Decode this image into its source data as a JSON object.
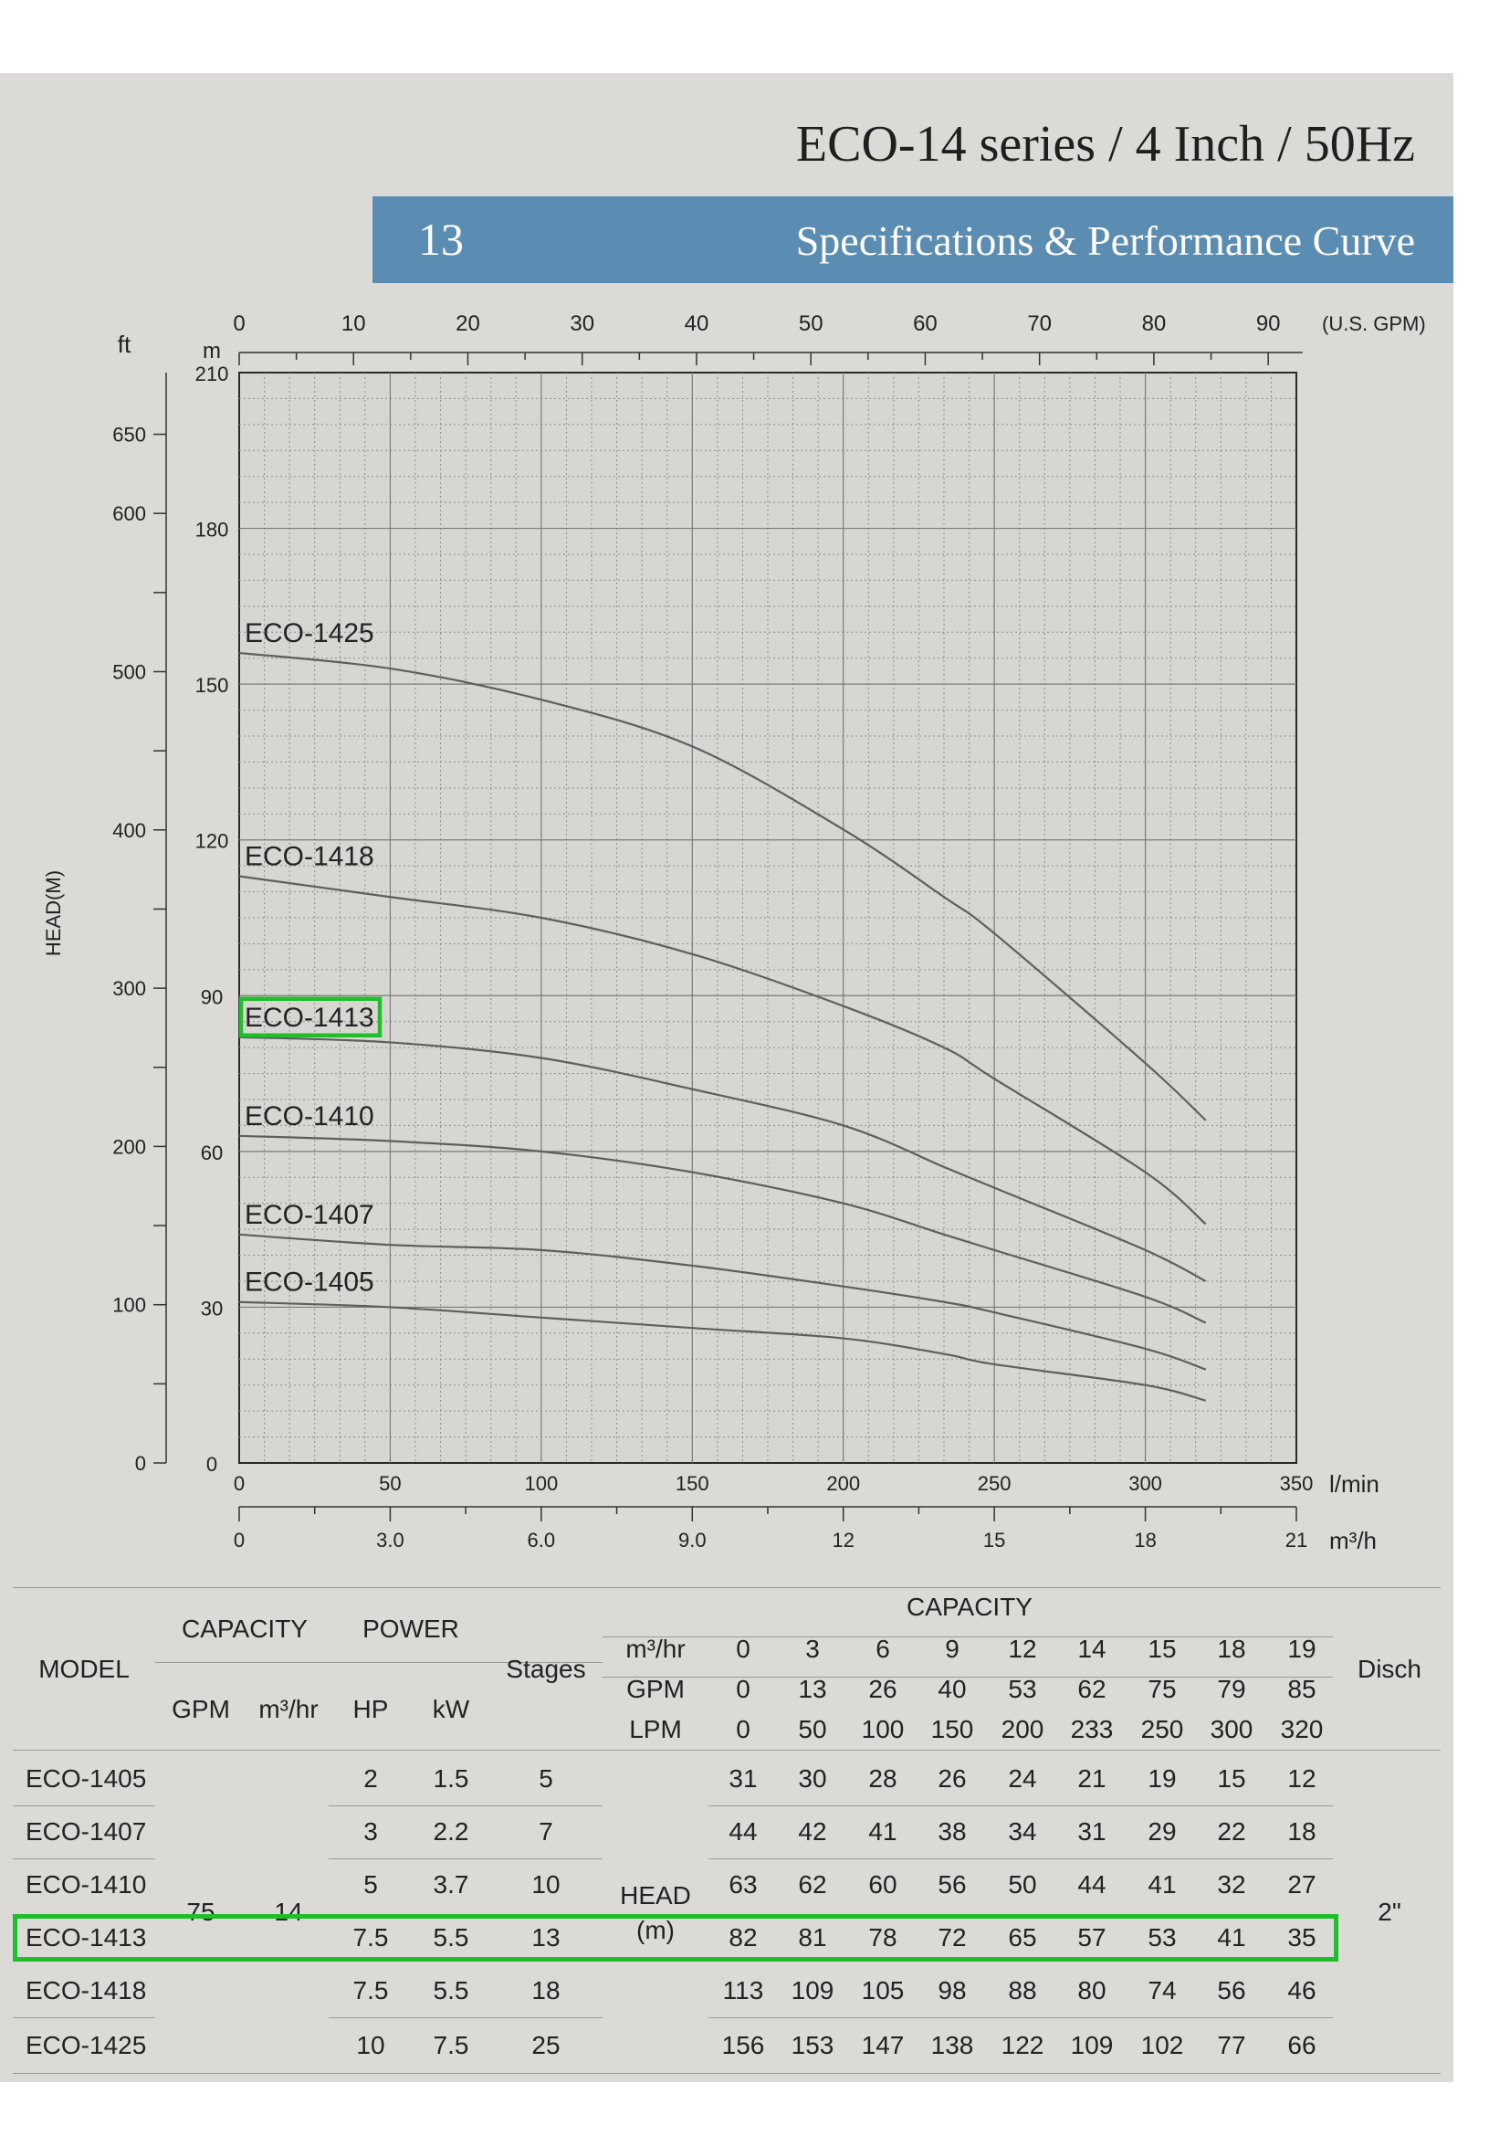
{
  "header": {
    "series_title": "ECO-14 series / 4 Inch / 50Hz",
    "page_number": "13",
    "section_title": "Specifications & Performance Curve",
    "band_color": "#5b8db3",
    "highlight_color": "#1fbe2a"
  },
  "chart_data": {
    "type": "line",
    "ylabel": "HEAD(M)",
    "y_unit_m": "m",
    "y_unit_ft": "ft",
    "xlim_m3h": [
      0,
      21
    ],
    "ylim_m": [
      0,
      210
    ],
    "y_ticks_m": [
      "0",
      "30",
      "60",
      "90",
      "120",
      "150",
      "180",
      "210"
    ],
    "y_ticks_ft": [
      "0",
      "100",
      "200",
      "300",
      "400",
      "500",
      "600",
      "650"
    ],
    "x_axis_gpm": {
      "unit": "(U.S. GPM)",
      "ticks": [
        "0",
        "10",
        "20",
        "30",
        "40",
        "50",
        "60",
        "70",
        "80",
        "90"
      ]
    },
    "x_axis_lmin": {
      "unit": "l/min",
      "ticks": [
        "0",
        "50",
        "100",
        "150",
        "200",
        "250",
        "300",
        "350"
      ]
    },
    "x_axis_m3h": {
      "unit": "m³/h",
      "ticks": [
        "0",
        "3.0",
        "6.0",
        "9.0",
        "12",
        "15",
        "18",
        "21"
      ]
    },
    "grid": true,
    "highlighted_series": "ECO-1413",
    "series": [
      {
        "name": "ECO-1425",
        "x": [
          0,
          3,
          6,
          9,
          12,
          14,
          15,
          18,
          19.2
        ],
        "y": [
          156,
          153,
          147,
          138,
          122,
          109,
          102,
          77,
          66
        ]
      },
      {
        "name": "ECO-1418",
        "x": [
          0,
          3,
          6,
          9,
          12,
          14,
          15,
          18,
          19.2
        ],
        "y": [
          113,
          109,
          105,
          98,
          88,
          80,
          74,
          56,
          46
        ]
      },
      {
        "name": "ECO-1413",
        "x": [
          0,
          3,
          6,
          9,
          12,
          14,
          15,
          18,
          19.2
        ],
        "y": [
          82,
          81,
          78,
          72,
          65,
          57,
          53,
          41,
          35
        ]
      },
      {
        "name": "ECO-1410",
        "x": [
          0,
          3,
          6,
          9,
          12,
          14,
          15,
          18,
          19.2
        ],
        "y": [
          63,
          62,
          60,
          56,
          50,
          44,
          41,
          32,
          27
        ]
      },
      {
        "name": "ECO-1407",
        "x": [
          0,
          3,
          6,
          9,
          12,
          14,
          15,
          18,
          19.2
        ],
        "y": [
          44,
          42,
          41,
          38,
          34,
          31,
          29,
          22,
          18
        ]
      },
      {
        "name": "ECO-1405",
        "x": [
          0,
          3,
          6,
          9,
          12,
          14,
          15,
          18,
          19.2
        ],
        "y": [
          31,
          30,
          28,
          26,
          24,
          21,
          19,
          15,
          12
        ]
      }
    ]
  },
  "table": {
    "model_header": "MODEL",
    "capacity_header": "CAPACITY",
    "gpm_header": "GPM",
    "m3hr_header": "m³/hr",
    "power_header": "POWER",
    "hp_header": "HP",
    "kw_header": "kW",
    "stages_header": "Stages",
    "capacity_right_header": "CAPACITY",
    "row_label_m3hr": "m³/hr",
    "row_label_gpm": "GPM",
    "row_label_lpm": "LPM",
    "disch_header": "Disch",
    "head_label": "HEAD",
    "head_unit": "(m)",
    "capacity_gpm": "75",
    "capacity_m3hr": "14",
    "disch": "2\"",
    "capacity_m3hr_values": [
      "0",
      "3",
      "6",
      "9",
      "12",
      "14",
      "15",
      "18",
      "19"
    ],
    "capacity_gpm_values": [
      "0",
      "13",
      "26",
      "40",
      "53",
      "62",
      "75",
      "79",
      "85"
    ],
    "capacity_lpm_values": [
      "0",
      "50",
      "100",
      "150",
      "200",
      "233",
      "250",
      "300",
      "320"
    ],
    "rows": [
      {
        "model": "ECO-1405",
        "hp": "2",
        "kw": "1.5",
        "stages": "5",
        "heads": [
          "31",
          "30",
          "28",
          "26",
          "24",
          "21",
          "19",
          "15",
          "12"
        ]
      },
      {
        "model": "ECO-1407",
        "hp": "3",
        "kw": "2.2",
        "stages": "7",
        "heads": [
          "44",
          "42",
          "41",
          "38",
          "34",
          "31",
          "29",
          "22",
          "18"
        ]
      },
      {
        "model": "ECO-1410",
        "hp": "5",
        "kw": "3.7",
        "stages": "10",
        "heads": [
          "63",
          "62",
          "60",
          "56",
          "50",
          "44",
          "41",
          "32",
          "27"
        ]
      },
      {
        "model": "ECO-1413",
        "hp": "7.5",
        "kw": "5.5",
        "stages": "13",
        "heads": [
          "82",
          "81",
          "78",
          "72",
          "65",
          "57",
          "53",
          "41",
          "35"
        ]
      },
      {
        "model": "ECO-1418",
        "hp": "7.5",
        "kw": "5.5",
        "stages": "18",
        "heads": [
          "113",
          "109",
          "105",
          "98",
          "88",
          "80",
          "74",
          "56",
          "46"
        ]
      },
      {
        "model": "ECO-1425",
        "hp": "10",
        "kw": "7.5",
        "stages": "25",
        "heads": [
          "156",
          "153",
          "147",
          "138",
          "122",
          "109",
          "102",
          "77",
          "66"
        ]
      }
    ]
  }
}
